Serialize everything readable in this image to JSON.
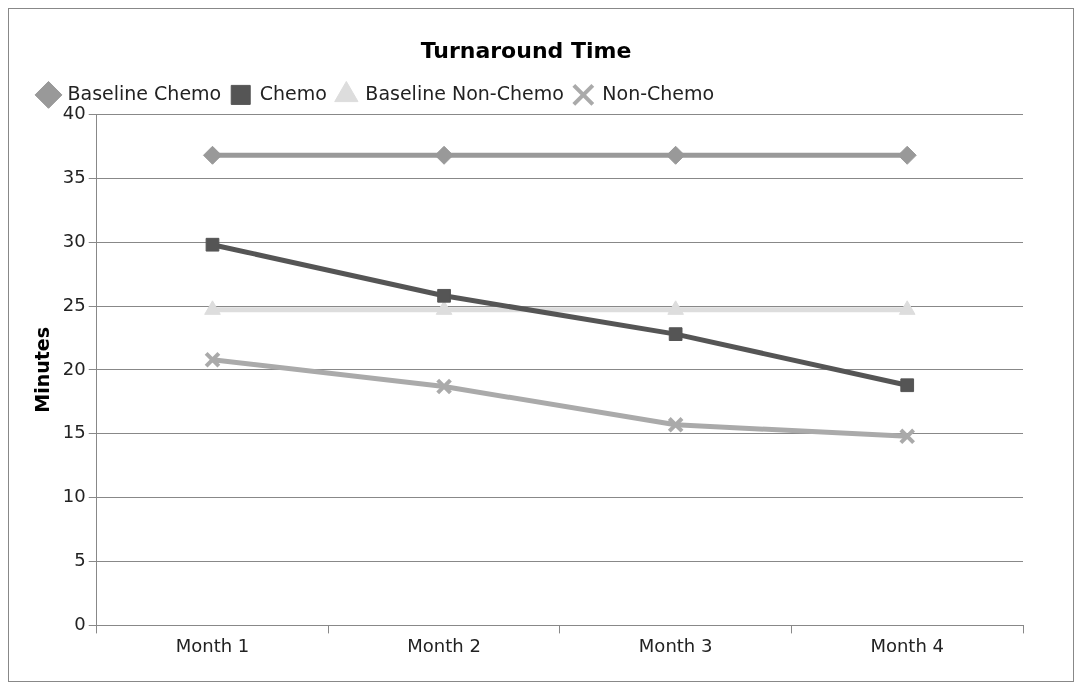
{
  "chart_data": {
    "type": "line",
    "title": "Turnaround Time",
    "ylabel": "Minutes",
    "categories": [
      "Month 1",
      "Month 2",
      "Month 3",
      "Month 4"
    ],
    "series": [
      {
        "name": "Baseline Chemo",
        "color": "#999999",
        "marker": "diamond",
        "values": [
          36.8,
          36.8,
          36.8,
          36.8
        ]
      },
      {
        "name": "Chemo",
        "color": "#555555",
        "marker": "square",
        "values": [
          29.8,
          25.8,
          22.8,
          18.8
        ]
      },
      {
        "name": "Baseline Non-Chemo",
        "color": "#dddddd",
        "marker": "triangle",
        "values": [
          24.7,
          24.7,
          24.7,
          24.7
        ]
      },
      {
        "name": "Non-Chemo",
        "color": "#aaaaaa",
        "marker": "cross",
        "values": [
          20.8,
          18.7,
          15.7,
          14.8
        ]
      }
    ],
    "ylim": [
      0,
      40
    ],
    "yticks": [
      0,
      5,
      10,
      15,
      20,
      25,
      30,
      35,
      40
    ],
    "grid": "y",
    "legend": "top",
    "line_style": "solid"
  }
}
